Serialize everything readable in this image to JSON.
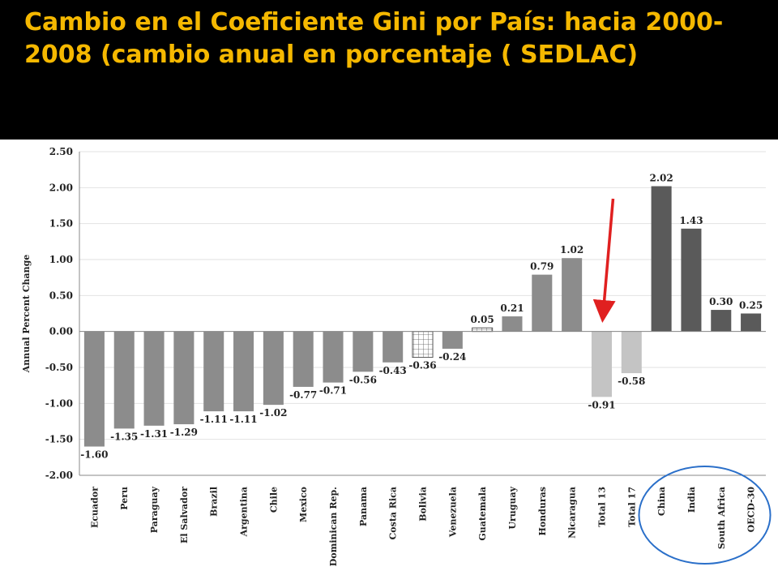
{
  "slide": {
    "title": "Cambio en el Coeficiente Gini por  País: hacia 2000-2008 (cambio anual en porcentaje ( SEDLAC)"
  },
  "colors": {
    "title": "#f5b800",
    "background": "#000000",
    "bar_latam": "#8c8c8c",
    "bar_total": "#c4c4c4",
    "bar_comparison": "#5a5a5a",
    "arrow": "#e02020",
    "circle": "#2a6fc9"
  },
  "chart_data": {
    "type": "bar",
    "ylabel": "Annual Percent Change",
    "ylim": [
      -2.0,
      2.5
    ],
    "yticks": [
      "2.50",
      "2.00",
      "1.50",
      "1.00",
      "0.50",
      "0.00",
      "-0.50",
      "-1.00",
      "-1.50",
      "-2.00"
    ],
    "grid": true,
    "categories": [
      "Ecuador",
      "Peru",
      "Paraguay",
      "El Salvador",
      "Brazil",
      "Argentina",
      "Chile",
      "Mexico",
      "Dominican Rep.",
      "Panama",
      "Costa Rica",
      "Bolivia",
      "Venezuela",
      "Guatemala",
      "Uruguay",
      "Honduras",
      "Nicaragua",
      "Total 13",
      "Total 17",
      "China",
      "India",
      "South Africa",
      "OECD-30"
    ],
    "values": [
      -1.6,
      -1.35,
      -1.31,
      -1.29,
      -1.11,
      -1.11,
      -1.02,
      -0.77,
      -0.71,
      -0.56,
      -0.43,
      -0.36,
      -0.24,
      0.05,
      0.21,
      0.79,
      1.02,
      -0.91,
      -0.58,
      2.02,
      1.43,
      0.3,
      0.25
    ],
    "labels": [
      "-1.60",
      "-1.35",
      "-1.31",
      "-1.29",
      "-1.11",
      "-1.11",
      "-1.02",
      "-0.77",
      "-0.71",
      "-0.56",
      "-0.43",
      "-0.36",
      "-0.24",
      "0.05",
      "0.21",
      "0.79",
      "1.02",
      "-0.91",
      "-0.58",
      "2.02",
      "1.43",
      "0.30",
      "0.25"
    ],
    "groups": [
      "latam",
      "latam",
      "latam",
      "latam",
      "latam",
      "latam",
      "latam",
      "latam",
      "latam",
      "latam",
      "latam",
      "latam",
      "latam",
      "latam",
      "latam",
      "latam",
      "latam",
      "total",
      "total",
      "comparison",
      "comparison",
      "comparison",
      "comparison"
    ],
    "patterned": [
      "Bolivia",
      "Guatemala"
    ],
    "annotations": [
      {
        "type": "arrow",
        "target": "Total 13",
        "color": "#e02020"
      },
      {
        "type": "ellipse",
        "encloses": [
          "China",
          "India",
          "South Africa",
          "OECD-30"
        ],
        "color": "#2a6fc9"
      }
    ]
  }
}
